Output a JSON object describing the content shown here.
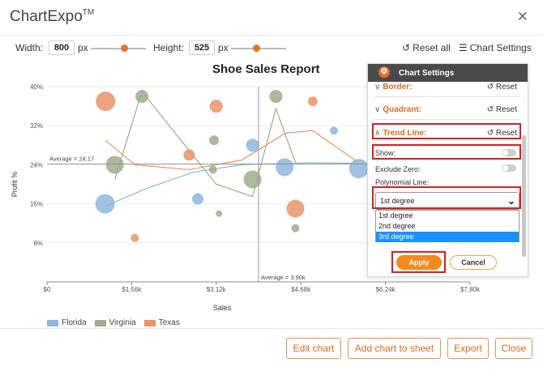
{
  "app": {
    "brand": "ChartExpo",
    "trademark": "TM"
  },
  "toolbar": {
    "width_label": "Width:",
    "width_value": "800",
    "width_unit": "px",
    "height_label": "Height:",
    "height_value": "525",
    "height_unit": "px",
    "reset_all": "Reset all",
    "chart_settings": "Chart Settings"
  },
  "chart_data": {
    "type": "scatter",
    "title": "Shoe Sales Report",
    "xlabel": "Sales",
    "ylabel": "Profit %",
    "xlim": [
      0,
      7800
    ],
    "ylim": [
      0,
      40
    ],
    "x_ticks": [
      0,
      1560,
      3120,
      4680,
      6240,
      7800
    ],
    "x_tick_labels": [
      "$0",
      "$1.56k",
      "$3.12k",
      "$4.68k",
      "$6.24k",
      "$7.80k"
    ],
    "y_ticks": [
      8,
      16,
      24,
      32,
      40
    ],
    "y_tick_labels": [
      "8%",
      "16%",
      "24%",
      "32%",
      "40%"
    ],
    "avg_x": 3900,
    "avg_x_label": "Average = 3.90k",
    "avg_y": 24.17,
    "avg_y_label": "Average = 24.17",
    "series": [
      {
        "name": "Florida",
        "color": "#8fb6dc",
        "points": [
          [
            1070,
            16,
            12
          ],
          [
            2780,
            17,
            7
          ],
          [
            3790,
            28,
            8
          ],
          [
            4380,
            23.5,
            11
          ],
          [
            5290,
            31,
            5
          ],
          [
            5750,
            23.2,
            12
          ]
        ],
        "trend": [
          [
            1070,
            15.5
          ],
          [
            1800,
            19
          ],
          [
            2700,
            22.5
          ],
          [
            3600,
            24
          ],
          [
            4800,
            24.4
          ],
          [
            5800,
            24.3
          ]
        ]
      },
      {
        "name": "Virginia",
        "color": "#9fac8e",
        "points": [
          [
            1250,
            24,
            11
          ],
          [
            1750,
            38,
            8
          ],
          [
            3060,
            23,
            5
          ],
          [
            3080,
            29,
            6
          ],
          [
            3170,
            14,
            4
          ],
          [
            3790,
            21,
            11
          ],
          [
            4220,
            38,
            8
          ],
          [
            4580,
            11,
            5
          ]
        ],
        "trend": [
          [
            1250,
            21
          ],
          [
            1750,
            39
          ],
          [
            3120,
            20
          ],
          [
            3790,
            17.5
          ],
          [
            4220,
            35.5
          ],
          [
            4580,
            24.5
          ]
        ]
      },
      {
        "name": "Texas",
        "color": "#e8936a",
        "points": [
          [
            1080,
            37,
            12
          ],
          [
            1620,
            9,
            5
          ],
          [
            2620,
            26,
            7
          ],
          [
            3120,
            36,
            8
          ],
          [
            4580,
            15,
            11
          ],
          [
            4900,
            37,
            6
          ]
        ],
        "trend": [
          [
            1080,
            29
          ],
          [
            1620,
            24
          ],
          [
            2620,
            23
          ],
          [
            3600,
            25
          ],
          [
            4400,
            30.5
          ],
          [
            4900,
            31
          ],
          [
            5800,
            24
          ]
        ]
      }
    ]
  },
  "legend": [
    "Florida",
    "Virginia",
    "Texas"
  ],
  "panel": {
    "title": "Chart Settings",
    "border": "Border:",
    "quadrant": "Quadrant:",
    "trend_line": "Trend Line:",
    "reset": "Reset",
    "show": "Show:",
    "exclude_zero": "Exclude Zero:",
    "polynomial_line": "Polynomial Line:",
    "selected": "1st degree",
    "options": [
      "1st degree",
      "2nd degree",
      "3rd degree"
    ],
    "apply": "Apply",
    "cancel": "Cancel"
  },
  "footer": {
    "edit_chart": "Edit chart",
    "add_chart": "Add chart to sheet",
    "export": "Export",
    "close": "Close"
  }
}
